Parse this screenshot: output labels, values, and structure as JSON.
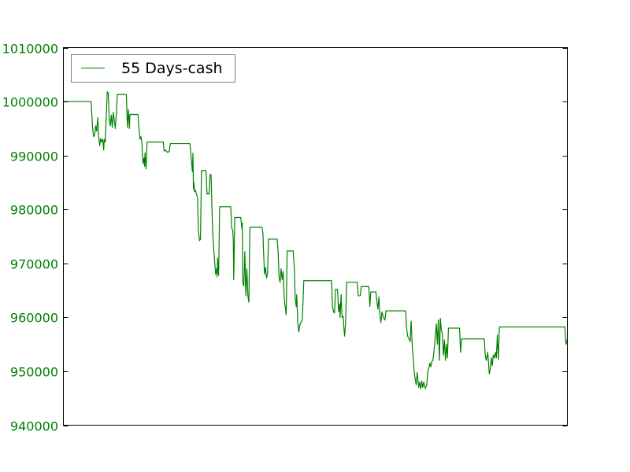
{
  "colors": {
    "series": "#008000",
    "tick_text": "#008000",
    "axes": "#000000",
    "background": "#ffffff",
    "legend_border": "#808080"
  },
  "chart_data": {
    "type": "line",
    "title": "",
    "xlabel": "",
    "ylabel": "",
    "x_ticks_visible": false,
    "ylim": [
      940000,
      1010000
    ],
    "y_ticks": [
      940000,
      950000,
      960000,
      970000,
      980000,
      990000,
      1000000,
      1010000
    ],
    "y_tick_labels": [
      "940000",
      "950000",
      "960000",
      "970000",
      "980000",
      "990000",
      "1000000",
      "1010000"
    ],
    "grid": false,
    "legend": {
      "position": "top-left",
      "entries": [
        "55 Days-cash"
      ]
    },
    "series": [
      {
        "name": "55 Days-cash",
        "x_range": [
          0,
          1000
        ],
        "points": [
          [
            0,
            1000000
          ],
          [
            55,
            1000000
          ],
          [
            58,
            995000
          ],
          [
            60,
            993500
          ],
          [
            62,
            993800
          ],
          [
            64,
            995500
          ],
          [
            66,
            994500
          ],
          [
            68,
            997000
          ],
          [
            70,
            993500
          ],
          [
            72,
            991800
          ],
          [
            74,
            993200
          ],
          [
            76,
            992500
          ],
          [
            78,
            993000
          ],
          [
            79,
            992000
          ],
          [
            80,
            991000
          ],
          [
            81,
            993000
          ],
          [
            83,
            992500
          ],
          [
            87,
            1001800
          ],
          [
            89,
            1001600
          ],
          [
            91,
            996500
          ],
          [
            93,
            995500
          ],
          [
            95,
            997500
          ],
          [
            97,
            995200
          ],
          [
            99,
            998000
          ],
          [
            101,
            996500
          ],
          [
            103,
            995000
          ],
          [
            105,
            997500
          ],
          [
            107,
            1001300
          ],
          [
            125,
            1001300
          ],
          [
            127,
            995200
          ],
          [
            129,
            998500
          ],
          [
            131,
            995000
          ],
          [
            132,
            997600
          ],
          [
            148,
            997600
          ],
          [
            150,
            995000
          ],
          [
            152,
            993000
          ],
          [
            154,
            993500
          ],
          [
            156,
            992000
          ],
          [
            158,
            988500
          ],
          [
            160,
            989500
          ],
          [
            161,
            988000
          ],
          [
            162,
            990500
          ],
          [
            164,
            987500
          ],
          [
            166,
            992500
          ],
          [
            198,
            992500
          ],
          [
            200,
            990800
          ],
          [
            203,
            991000
          ],
          [
            206,
            990600
          ],
          [
            210,
            990700
          ],
          [
            212,
            992200
          ],
          [
            251,
            992200
          ],
          [
            254,
            989000
          ],
          [
            256,
            987000
          ],
          [
            257,
            990400
          ],
          [
            258,
            983800
          ],
          [
            259,
            985000
          ],
          [
            260,
            983300
          ],
          [
            262,
            983600
          ],
          [
            264,
            982800
          ],
          [
            266,
            982300
          ],
          [
            268,
            976000
          ],
          [
            270,
            974200
          ],
          [
            272,
            974500
          ],
          [
            274,
            987200
          ],
          [
            283,
            987200
          ],
          [
            285,
            982800
          ],
          [
            287,
            983000
          ],
          [
            289,
            982800
          ],
          [
            291,
            986500
          ],
          [
            293,
            986400
          ],
          [
            296,
            976000
          ],
          [
            298,
            973000
          ],
          [
            300,
            970500
          ],
          [
            302,
            968000
          ],
          [
            304,
            969000
          ],
          [
            305,
            967500
          ],
          [
            306,
            971000
          ],
          [
            308,
            967800
          ],
          [
            310,
            980500
          ],
          [
            332,
            980500
          ],
          [
            334,
            976500
          ],
          [
            336,
            976200
          ],
          [
            337,
            974500
          ],
          [
            338,
            967000
          ],
          [
            340,
            978500
          ],
          [
            352,
            978500
          ],
          [
            354,
            976500
          ],
          [
            355,
            977500
          ],
          [
            356,
            966500
          ],
          [
            358,
            965800
          ],
          [
            360,
            972200
          ],
          [
            362,
            964000
          ],
          [
            364,
            969000
          ],
          [
            366,
            964000
          ],
          [
            368,
            962800
          ],
          [
            370,
            976700
          ],
          [
            394,
            976700
          ],
          [
            396,
            975500
          ],
          [
            397,
            972500
          ],
          [
            399,
            968000
          ],
          [
            401,
            969300
          ],
          [
            403,
            967300
          ],
          [
            405,
            968000
          ],
          [
            407,
            974500
          ],
          [
            424,
            974500
          ],
          [
            426,
            972300
          ],
          [
            428,
            967300
          ],
          [
            430,
            966500
          ],
          [
            432,
            969000
          ],
          [
            434,
            967000
          ],
          [
            436,
            968500
          ],
          [
            438,
            963800
          ],
          [
            440,
            962000
          ],
          [
            442,
            960500
          ],
          [
            444,
            972300
          ],
          [
            456,
            972300
          ],
          [
            458,
            969500
          ],
          [
            460,
            963500
          ],
          [
            462,
            962000
          ],
          [
            463,
            964200
          ],
          [
            465,
            959000
          ],
          [
            467,
            957300
          ],
          [
            469,
            958500
          ],
          [
            471,
            959000
          ],
          [
            474,
            959500
          ],
          [
            477,
            966800
          ],
          [
            532,
            966800
          ],
          [
            534,
            962000
          ],
          [
            536,
            961000
          ],
          [
            538,
            960800
          ],
          [
            540,
            965200
          ],
          [
            544,
            965200
          ],
          [
            546,
            961000
          ],
          [
            548,
            962500
          ],
          [
            549,
            960000
          ],
          [
            551,
            964200
          ],
          [
            553,
            960000
          ],
          [
            555,
            960200
          ],
          [
            557,
            957500
          ],
          [
            558,
            956500
          ],
          [
            560,
            959000
          ],
          [
            562,
            966500
          ],
          [
            583,
            966500
          ],
          [
            585,
            964000
          ],
          [
            589,
            964000
          ],
          [
            591,
            965700
          ],
          [
            606,
            965700
          ],
          [
            608,
            962000
          ],
          [
            610,
            964700
          ],
          [
            620,
            964700
          ],
          [
            622,
            963000
          ],
          [
            624,
            961500
          ],
          [
            626,
            963800
          ],
          [
            628,
            960500
          ],
          [
            630,
            959000
          ],
          [
            632,
            961000
          ],
          [
            635,
            960000
          ],
          [
            638,
            959500
          ],
          [
            640,
            961200
          ],
          [
            679,
            961200
          ],
          [
            681,
            958000
          ],
          [
            683,
            956500
          ],
          [
            686,
            956000
          ],
          [
            688,
            955500
          ],
          [
            690,
            959300
          ],
          [
            692,
            955000
          ],
          [
            694,
            952500
          ],
          [
            696,
            950000
          ],
          [
            698,
            948500
          ],
          [
            700,
            947500
          ],
          [
            702,
            949800
          ],
          [
            705,
            947000
          ],
          [
            707,
            948000
          ],
          [
            709,
            946700
          ],
          [
            711,
            948200
          ],
          [
            713,
            947000
          ],
          [
            715,
            948000
          ],
          [
            718,
            946800
          ],
          [
            721,
            947500
          ],
          [
            723,
            950000
          ],
          [
            725,
            950500
          ],
          [
            727,
            951500
          ],
          [
            729,
            950800
          ],
          [
            731,
            951800
          ],
          [
            733,
            952000
          ],
          [
            735,
            953500
          ],
          [
            737,
            955500
          ],
          [
            740,
            958800
          ],
          [
            742,
            955000
          ],
          [
            744,
            959500
          ],
          [
            746,
            952000
          ],
          [
            748,
            959800
          ],
          [
            750,
            957500
          ],
          [
            752,
            957000
          ],
          [
            754,
            953000
          ],
          [
            756,
            955800
          ],
          [
            758,
            952000
          ],
          [
            760,
            955000
          ],
          [
            762,
            952500
          ],
          [
            764,
            958000
          ],
          [
            786,
            958000
          ],
          [
            788,
            953500
          ],
          [
            790,
            956000
          ],
          [
            835,
            956000
          ],
          [
            837,
            953000
          ],
          [
            839,
            952000
          ],
          [
            842,
            953500
          ],
          [
            845,
            949500
          ],
          [
            847,
            950500
          ],
          [
            849,
            952500
          ],
          [
            851,
            951000
          ],
          [
            853,
            953000
          ],
          [
            855,
            952500
          ],
          [
            857,
            953500
          ],
          [
            859,
            952500
          ],
          [
            861,
            956700
          ],
          [
            863,
            952200
          ],
          [
            865,
            958200
          ],
          [
            995,
            958200
          ],
          [
            997,
            955000
          ],
          [
            1000,
            956000
          ]
        ]
      }
    ]
  }
}
